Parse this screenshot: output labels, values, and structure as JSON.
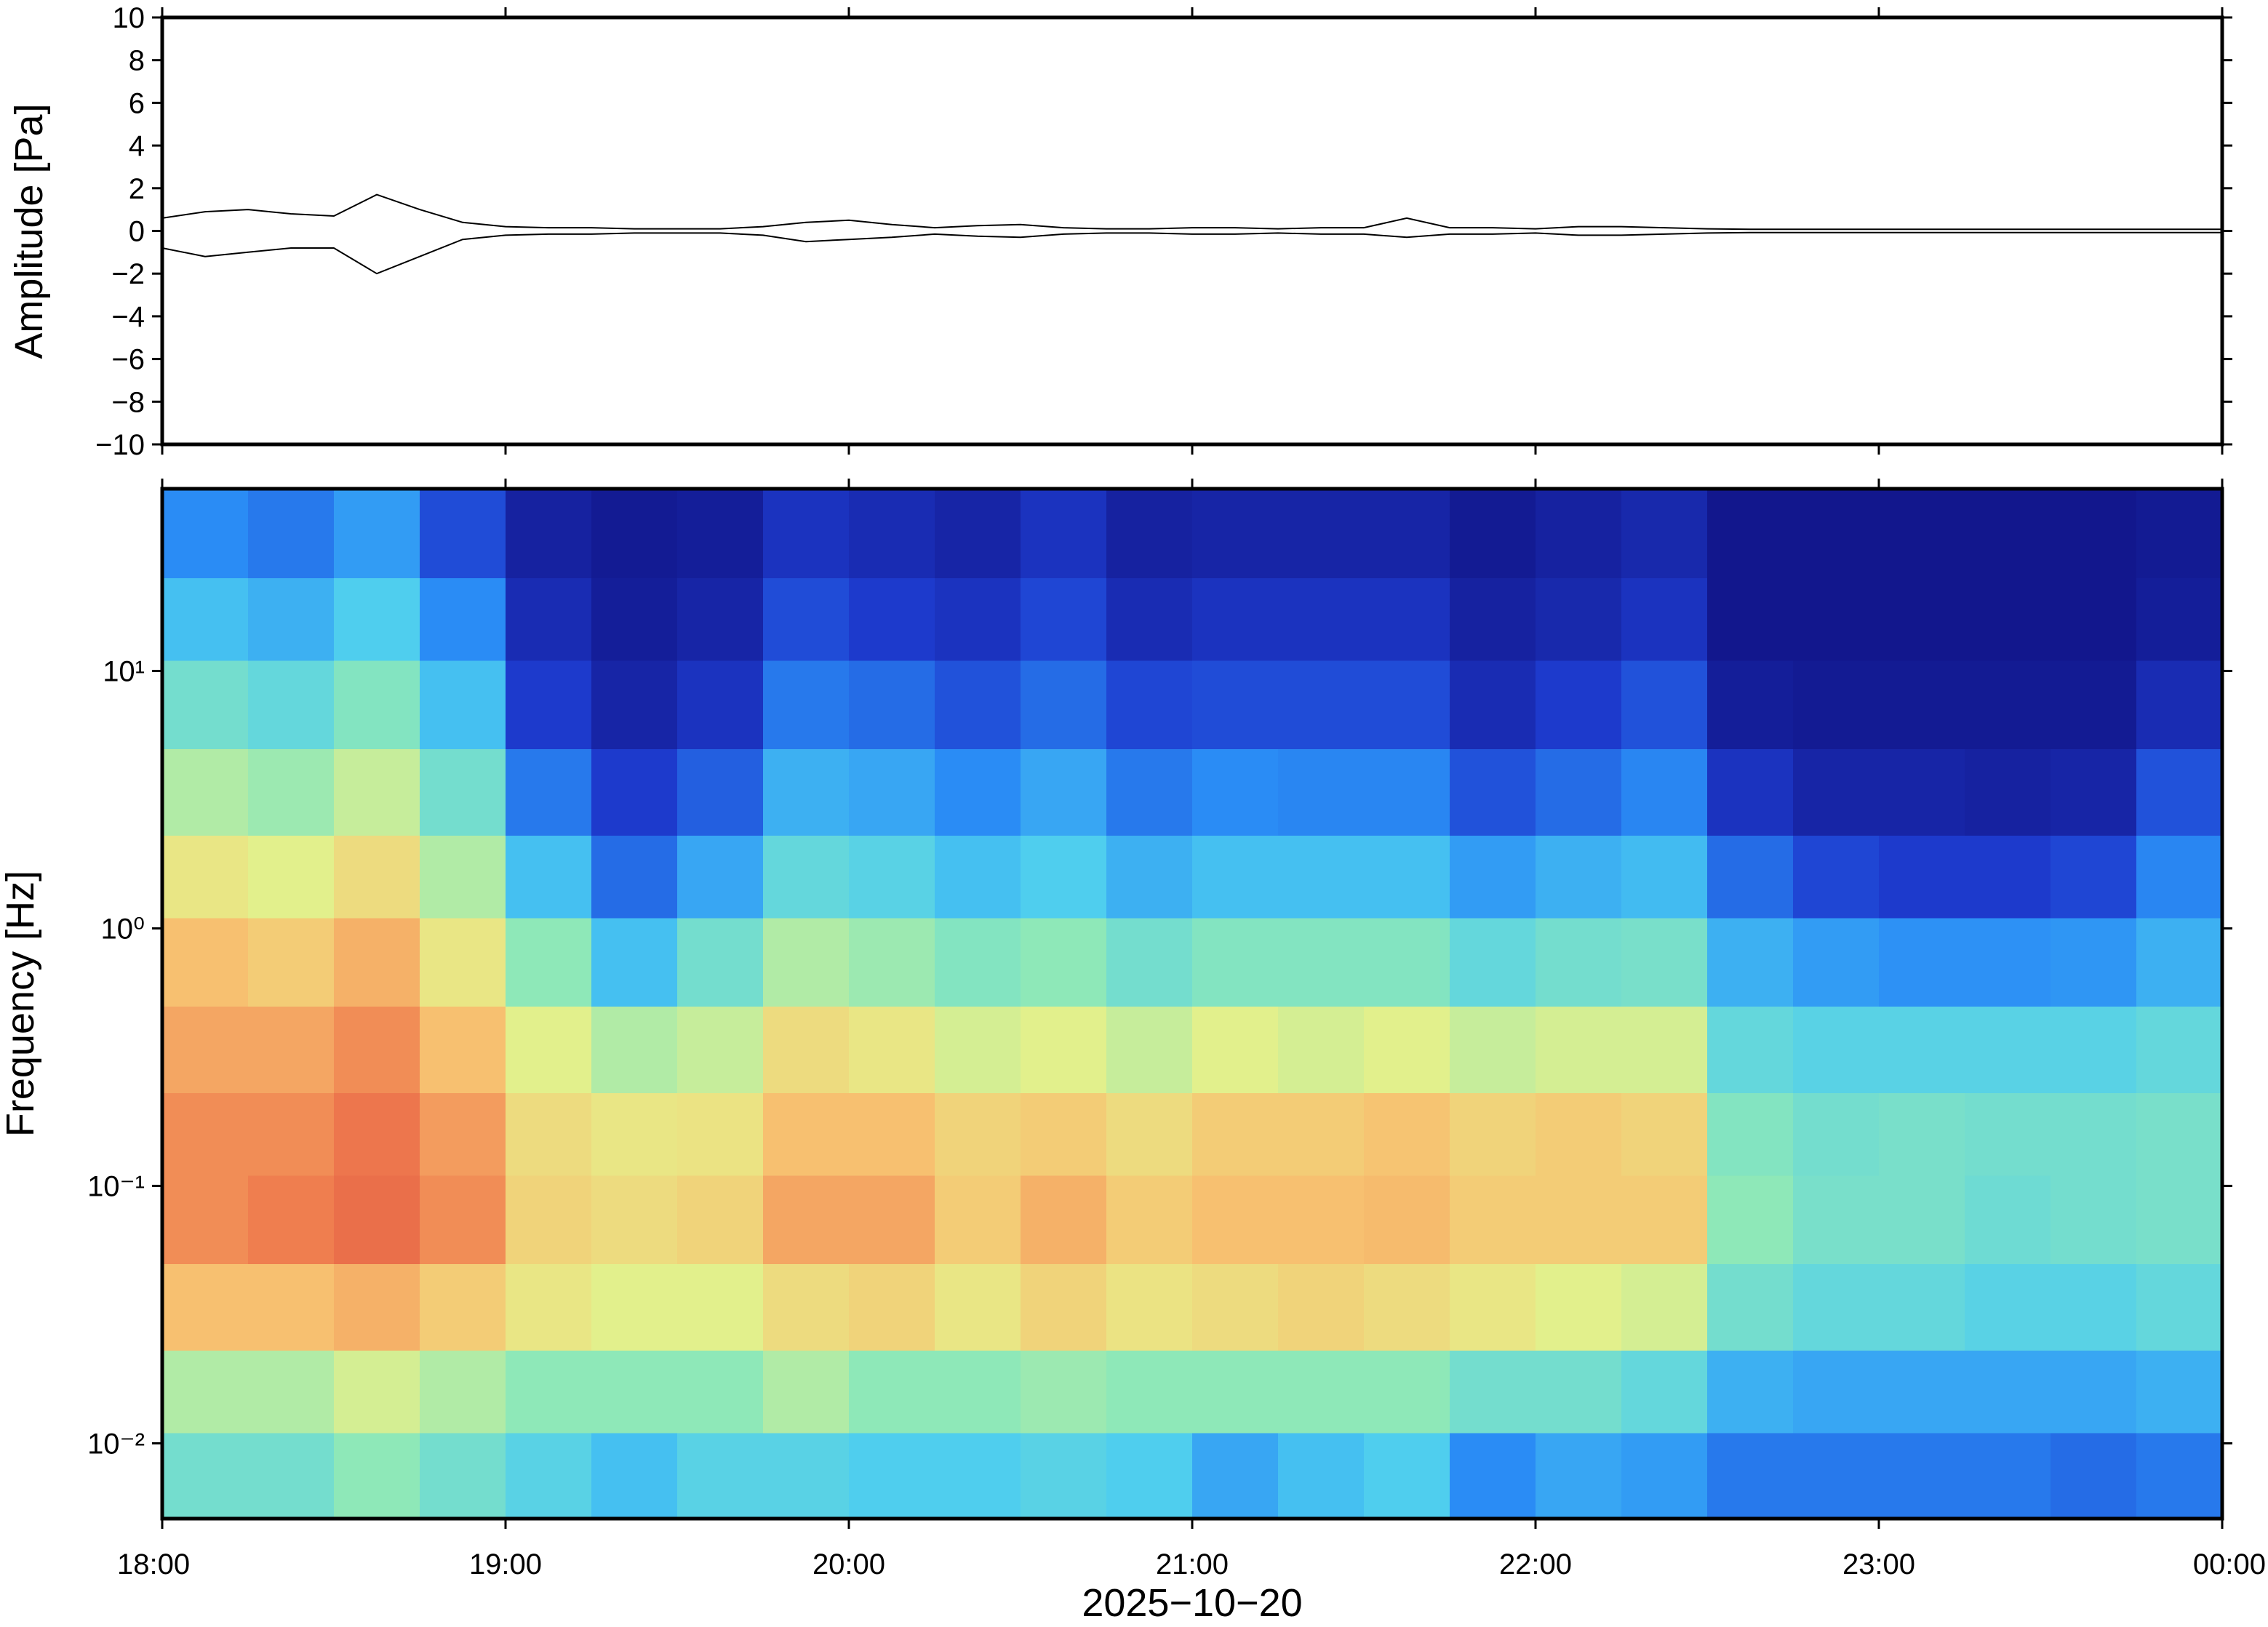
{
  "chart_data": [
    {
      "type": "line",
      "ylabel": "Amplitude [Pa]",
      "xlim": [
        18,
        24
      ],
      "xticks": [
        {
          "value": 18,
          "label": "18:00"
        },
        {
          "value": 19,
          "label": "19:00"
        },
        {
          "value": 20,
          "label": "20:00"
        },
        {
          "value": 21,
          "label": "21:00"
        },
        {
          "value": 22,
          "label": "22:00"
        },
        {
          "value": 23,
          "label": "23:00"
        },
        {
          "value": 24,
          "label": "00:00"
        }
      ],
      "ylim": [
        -10,
        10
      ],
      "yticks": [
        {
          "value": -10,
          "label": "−10"
        },
        {
          "value": -8,
          "label": "−8"
        },
        {
          "value": -6,
          "label": "−6"
        },
        {
          "value": -4,
          "label": "−4"
        },
        {
          "value": -2,
          "label": "−2"
        },
        0,
        2,
        4,
        6,
        8,
        10
      ],
      "x": [
        18,
        18.125,
        18.25,
        18.375,
        18.5,
        18.625,
        18.75,
        18.875,
        19,
        19.125,
        19.25,
        19.375,
        19.5,
        19.625,
        19.75,
        19.875,
        20,
        20.125,
        20.25,
        20.375,
        20.5,
        20.625,
        20.75,
        20.875,
        21,
        21.125,
        21.25,
        21.375,
        21.5,
        21.625,
        21.75,
        21.875,
        22,
        22.125,
        22.25,
        22.375,
        22.5,
        22.625,
        22.75,
        22.875,
        23,
        23.125,
        23.25,
        23.375,
        23.5,
        23.625,
        23.75,
        23.875,
        24
      ],
      "series": [
        {
          "color": "#000000",
          "values": [
            0.6,
            0.9,
            1.0,
            0.8,
            0.7,
            1.7,
            1.0,
            0.4,
            0.2,
            0.15,
            0.15,
            0.1,
            0.1,
            0.1,
            0.2,
            0.4,
            0.5,
            0.3,
            0.15,
            0.25,
            0.3,
            0.15,
            0.1,
            0.1,
            0.15,
            0.15,
            0.1,
            0.15,
            0.15,
            0.6,
            0.15,
            0.15,
            0.1,
            0.2,
            0.2,
            0.15,
            0.1,
            0.08,
            0.08,
            0.08,
            0.08,
            0.08,
            0.08,
            0.08,
            0.08,
            0.08,
            0.08,
            0.08,
            0.08
          ]
        },
        {
          "color": "#000000",
          "values": [
            -0.8,
            -1.2,
            -1.0,
            -0.8,
            -0.8,
            -2.0,
            -1.2,
            -0.4,
            -0.2,
            -0.15,
            -0.15,
            -0.1,
            -0.1,
            -0.1,
            -0.2,
            -0.5,
            -0.4,
            -0.3,
            -0.15,
            -0.25,
            -0.3,
            -0.15,
            -0.1,
            -0.1,
            -0.15,
            -0.15,
            -0.1,
            -0.15,
            -0.15,
            -0.3,
            -0.15,
            -0.15,
            -0.1,
            -0.2,
            -0.2,
            -0.15,
            -0.1,
            -0.08,
            -0.08,
            -0.08,
            -0.08,
            -0.08,
            -0.08,
            -0.08,
            -0.08,
            -0.08,
            -0.08,
            -0.08,
            -0.08
          ]
        }
      ]
    },
    {
      "type": "spectrogram",
      "ylabel": "Frequency [Hz]",
      "xlabel": "2025−10−20",
      "xlim": [
        18,
        24
      ],
      "xticks": [
        {
          "value": 18,
          "label": "18:00"
        },
        {
          "value": 19,
          "label": "19:00"
        },
        {
          "value": 20,
          "label": "20:00"
        },
        {
          "value": 21,
          "label": "21:00"
        },
        {
          "value": 22,
          "label": "22:00"
        },
        {
          "value": 23,
          "label": "23:00"
        },
        {
          "value": 24,
          "label": "00:00"
        }
      ],
      "ylim": [
        0.0051,
        51
      ],
      "log_y": true,
      "yticks": [
        {
          "value": 0.01,
          "label": "10⁻²"
        },
        {
          "value": 0.1,
          "label": "10⁻¹"
        },
        {
          "value": 1,
          "label": "10⁰"
        },
        {
          "value": 10,
          "label": "10¹"
        }
      ],
      "colorscale": [
        "#101080",
        "#1e3ccf",
        "#2a8cf5",
        "#4ccdf0",
        "#8ee8b8",
        "#e6f08a",
        "#f7c070",
        "#f08050",
        "#e05040"
      ],
      "x_bins": [
        18,
        18.25,
        18.5,
        18.75,
        19,
        19.25,
        19.5,
        19.75,
        20,
        20.25,
        20.5,
        20.75,
        21,
        21.25,
        21.5,
        21.75,
        22,
        22.25,
        22.5,
        22.75,
        23,
        23.25,
        23.5,
        23.75,
        24
      ],
      "y_bins": [
        0.0051,
        0.011,
        0.023,
        0.05,
        0.11,
        0.23,
        0.5,
        1.1,
        2.3,
        5,
        11,
        23,
        51
      ],
      "values": [
        [
          0.45,
          0.55,
          0.75,
          0.85,
          0.85,
          0.8,
          0.75,
          0.65,
          0.55,
          0.45,
          0.35,
          0.25
        ],
        [
          0.45,
          0.55,
          0.75,
          0.88,
          0.85,
          0.8,
          0.72,
          0.62,
          0.52,
          0.42,
          0.32,
          0.22
        ],
        [
          0.5,
          0.6,
          0.78,
          0.92,
          0.9,
          0.85,
          0.78,
          0.68,
          0.58,
          0.48,
          0.38,
          0.28
        ],
        [
          0.45,
          0.55,
          0.72,
          0.85,
          0.82,
          0.75,
          0.65,
          0.55,
          0.45,
          0.35,
          0.25,
          0.15
        ],
        [
          0.4,
          0.5,
          0.65,
          0.7,
          0.68,
          0.62,
          0.5,
          0.35,
          0.22,
          0.12,
          0.08,
          0.05
        ],
        [
          0.35,
          0.5,
          0.62,
          0.68,
          0.65,
          0.55,
          0.35,
          0.2,
          0.12,
          0.06,
          0.04,
          0.03
        ],
        [
          0.4,
          0.5,
          0.62,
          0.7,
          0.66,
          0.58,
          0.45,
          0.3,
          0.18,
          0.1,
          0.06,
          0.04
        ],
        [
          0.4,
          0.55,
          0.68,
          0.8,
          0.75,
          0.68,
          0.55,
          0.42,
          0.32,
          0.22,
          0.15,
          0.1
        ],
        [
          0.38,
          0.5,
          0.7,
          0.8,
          0.75,
          0.65,
          0.52,
          0.4,
          0.3,
          0.2,
          0.12,
          0.08
        ],
        [
          0.38,
          0.5,
          0.65,
          0.72,
          0.7,
          0.6,
          0.48,
          0.35,
          0.25,
          0.16,
          0.1,
          0.06
        ],
        [
          0.4,
          0.52,
          0.7,
          0.78,
          0.72,
          0.62,
          0.5,
          0.38,
          0.3,
          0.2,
          0.14,
          0.1
        ],
        [
          0.38,
          0.5,
          0.66,
          0.72,
          0.68,
          0.58,
          0.45,
          0.32,
          0.22,
          0.14,
          0.08,
          0.05
        ],
        [
          0.3,
          0.5,
          0.68,
          0.75,
          0.72,
          0.62,
          0.48,
          0.35,
          0.25,
          0.15,
          0.1,
          0.06
        ],
        [
          0.35,
          0.5,
          0.7,
          0.75,
          0.72,
          0.6,
          0.48,
          0.35,
          0.24,
          0.15,
          0.1,
          0.06
        ],
        [
          0.38,
          0.5,
          0.68,
          0.76,
          0.74,
          0.62,
          0.48,
          0.35,
          0.24,
          0.15,
          0.1,
          0.06
        ],
        [
          0.25,
          0.45,
          0.65,
          0.72,
          0.7,
          0.58,
          0.42,
          0.28,
          0.16,
          0.08,
          0.05,
          0.03
        ],
        [
          0.3,
          0.45,
          0.62,
          0.72,
          0.72,
          0.6,
          0.45,
          0.32,
          0.2,
          0.12,
          0.07,
          0.05
        ],
        [
          0.28,
          0.42,
          0.6,
          0.72,
          0.7,
          0.6,
          0.46,
          0.34,
          0.24,
          0.16,
          0.1,
          0.07
        ],
        [
          0.22,
          0.32,
          0.45,
          0.5,
          0.48,
          0.42,
          0.32,
          0.2,
          0.1,
          0.04,
          0.02,
          0.02
        ],
        [
          0.22,
          0.3,
          0.42,
          0.46,
          0.45,
          0.4,
          0.28,
          0.14,
          0.06,
          0.03,
          0.02,
          0.02
        ],
        [
          0.22,
          0.3,
          0.42,
          0.46,
          0.46,
          0.4,
          0.26,
          0.12,
          0.06,
          0.03,
          0.02,
          0.02
        ],
        [
          0.22,
          0.3,
          0.4,
          0.44,
          0.45,
          0.4,
          0.26,
          0.12,
          0.05,
          0.03,
          0.02,
          0.02
        ],
        [
          0.2,
          0.3,
          0.4,
          0.45,
          0.45,
          0.4,
          0.27,
          0.14,
          0.06,
          0.03,
          0.02,
          0.02
        ],
        [
          0.22,
          0.32,
          0.42,
          0.46,
          0.46,
          0.42,
          0.32,
          0.24,
          0.16,
          0.08,
          0.04,
          0.03
        ]
      ]
    }
  ]
}
